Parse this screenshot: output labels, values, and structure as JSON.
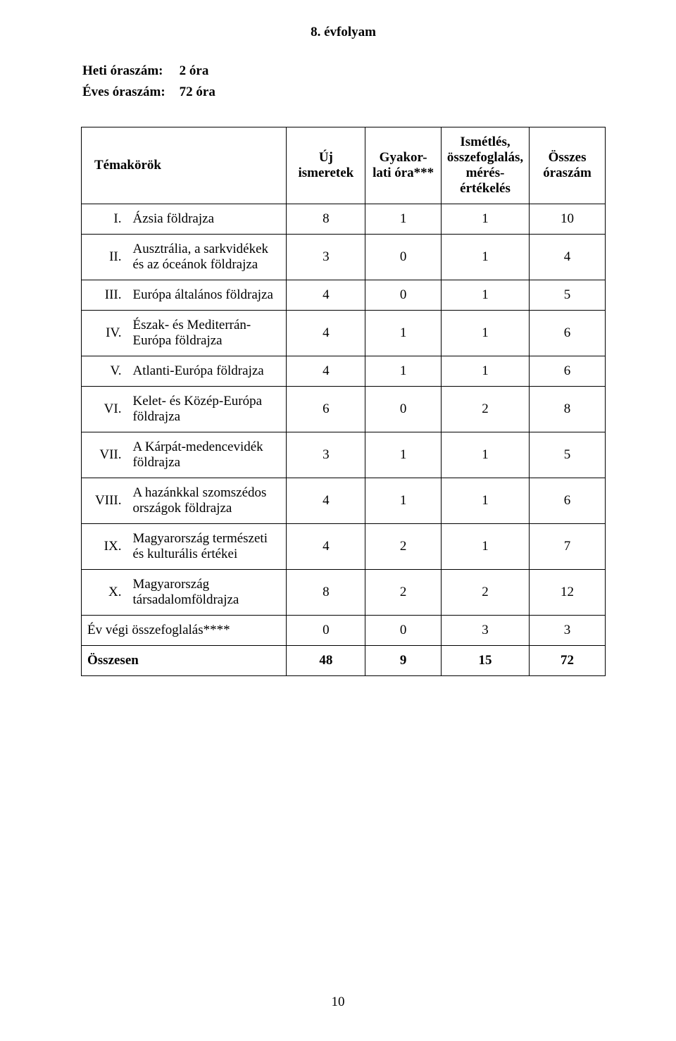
{
  "grade_title": "8. évfolyam",
  "hours": {
    "weekly_label": "Heti óraszám:",
    "weekly_value": "2 óra",
    "yearly_label": "Éves óraszám:",
    "yearly_value": "72 óra"
  },
  "table": {
    "header": {
      "topics": "Témakörök",
      "new_knowledge": "Új ismeretek",
      "practice": "Gyakor-lati óra***",
      "repetition": "Ismétlés, összefoglalás, mérés-értékelés",
      "total": "Összes óraszám"
    },
    "rows": [
      {
        "roman": "I.",
        "topic": "Ázsia földrajza",
        "c1": "8",
        "c2": "1",
        "c3": "1",
        "c4": "10"
      },
      {
        "roman": "II.",
        "topic": "Ausztrália, a sarkvidékek és az óceánok földrajza",
        "c1": "3",
        "c2": "0",
        "c3": "1",
        "c4": "4"
      },
      {
        "roman": "III.",
        "topic": "Európa általános földrajza",
        "c1": "4",
        "c2": "0",
        "c3": "1",
        "c4": "5"
      },
      {
        "roman": "IV.",
        "topic": "Észak- és Mediterrán-Európa földrajza",
        "c1": "4",
        "c2": "1",
        "c3": "1",
        "c4": "6"
      },
      {
        "roman": "V.",
        "topic": "Atlanti-Európa földrajza",
        "c1": "4",
        "c2": "1",
        "c3": "1",
        "c4": "6"
      },
      {
        "roman": "VI.",
        "topic": "Kelet- és Közép-Európa földrajza",
        "c1": "6",
        "c2": "0",
        "c3": "2",
        "c4": "8"
      },
      {
        "roman": "VII.",
        "topic": "A Kárpát-medencevidék földrajza",
        "c1": "3",
        "c2": "1",
        "c3": "1",
        "c4": "5"
      },
      {
        "roman": "VIII.",
        "topic": "A hazánkkal szomszédos országok földrajza",
        "c1": "4",
        "c2": "1",
        "c3": "1",
        "c4": "6"
      },
      {
        "roman": "IX.",
        "topic": "Magyarország természeti és kulturális értékei",
        "c1": "4",
        "c2": "2",
        "c3": "1",
        "c4": "7"
      },
      {
        "roman": "X.",
        "topic": "Magyarország társadalomföldrajza",
        "c1": "8",
        "c2": "2",
        "c3": "2",
        "c4": "12"
      }
    ],
    "year_end": {
      "label": "Év végi összefoglalás****",
      "c1": "0",
      "c2": "0",
      "c3": "3",
      "c4": "3"
    },
    "sum": {
      "label": "Összesen",
      "c1": "48",
      "c2": "9",
      "c3": "15",
      "c4": "72"
    }
  },
  "page_footer": "10"
}
